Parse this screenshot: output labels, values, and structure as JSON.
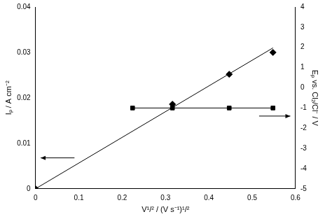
{
  "chart_data": {
    "type": "scatter",
    "x_label": "V¹/² / (V s⁻¹)¹/²",
    "y_label": "Iₚ / A cm⁻²",
    "y2_label": "Eₚ vs. Cl₂/Cl⁻ / V",
    "xlim": [
      0,
      0.6
    ],
    "xticks": [
      0,
      0.1,
      0.2,
      0.3,
      0.4,
      0.5,
      0.6
    ],
    "ylim": [
      0,
      0.04
    ],
    "yticks": [
      0,
      0.01,
      0.02,
      0.03,
      0.04
    ],
    "y2lim": [
      -5,
      4
    ],
    "y2ticks": [
      -5,
      -4,
      -3,
      -2,
      -1,
      0,
      1,
      2,
      3,
      4
    ],
    "grid": false,
    "series": [
      {
        "type": "scatter",
        "x": [
          0,
          0.316,
          0.447,
          0.548
        ],
        "values": [
          0,
          0.0186,
          0.0252,
          0.03
        ],
        "marker": "diamond",
        "color": "#000000"
      },
      {
        "type": "line",
        "x": [
          0,
          0.548
        ],
        "values": [
          0,
          0.031
        ],
        "marker": "none",
        "line_style": "solid",
        "color": "#000000"
      },
      {
        "type": "line",
        "axis": "y2",
        "x": [
          0.224,
          0.316,
          0.447,
          0.548
        ],
        "values": [
          -1,
          -1,
          -1,
          -1
        ],
        "marker": "square",
        "line_style": "solid",
        "color": "#000000"
      }
    ]
  }
}
